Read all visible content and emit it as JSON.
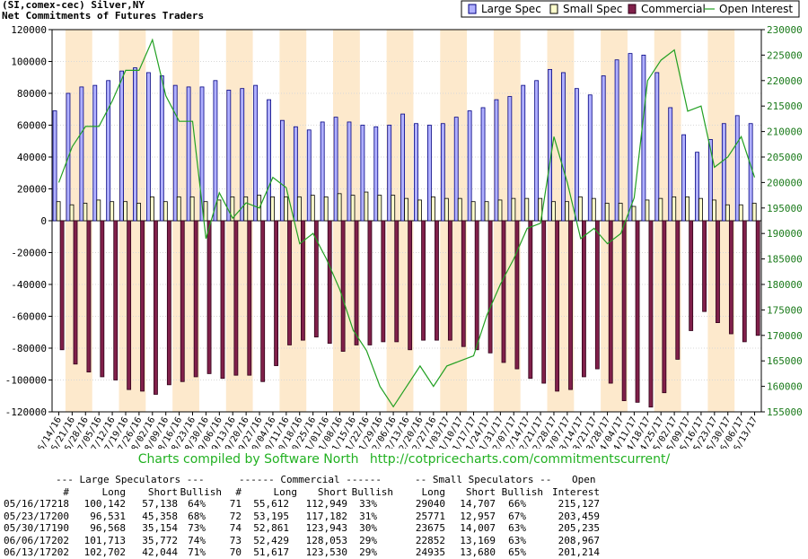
{
  "title_line1": "(SI,comex-cec) Silver,NY",
  "title_line2": "Net Commitments of Futures Traders",
  "colors": {
    "large_spec": "#b0b0ff",
    "small_spec": "#ffffcc",
    "commercial": "#80204a",
    "open_interest": "#22a022",
    "band": "#fde9cc"
  },
  "chart_data": {
    "type": "bar",
    "title": "Net Commitments of Futures Traders",
    "legend_position": "top-right",
    "left_axis": {
      "range": [
        -120000,
        120000
      ],
      "ticks": [
        "120000",
        "100000",
        "80000",
        "60000",
        "40000",
        "20000",
        "0",
        "-20000",
        "-40000",
        "-60000",
        "-80000",
        "-100000",
        "-120000"
      ]
    },
    "right_axis": {
      "range": [
        155000,
        230000
      ],
      "ticks": [
        "230000",
        "225000",
        "220000",
        "215000",
        "210000",
        "205000",
        "200000",
        "195000",
        "190000",
        "185000",
        "180000",
        "175000",
        "170000",
        "165000",
        "160000",
        "155000"
      ]
    },
    "categories": [
      "06/14/16",
      "06/21/16",
      "06/28/16",
      "07/05/16",
      "07/12/16",
      "07/19/16",
      "07/26/16",
      "08/02/16",
      "08/09/16",
      "08/16/16",
      "08/23/16",
      "08/30/16",
      "09/06/16",
      "09/13/16",
      "09/20/16",
      "09/27/16",
      "10/04/16",
      "10/11/16",
      "10/18/16",
      "10/25/16",
      "11/01/16",
      "11/08/16",
      "11/15/16",
      "11/22/16",
      "11/29/16",
      "12/06/16",
      "12/13/16",
      "12/20/16",
      "12/27/16",
      "01/03/17",
      "01/10/17",
      "01/17/17",
      "01/24/17",
      "01/31/17",
      "02/07/17",
      "02/14/17",
      "02/21/17",
      "02/28/17",
      "03/07/17",
      "03/14/17",
      "03/21/17",
      "03/28/17",
      "04/04/17",
      "04/11/17",
      "04/18/17",
      "04/25/17",
      "05/02/17",
      "05/09/17",
      "05/16/17",
      "05/23/17",
      "05/30/17",
      "06/06/17",
      "06/13/17"
    ],
    "series": [
      {
        "name": "Large Spec",
        "axis": "left",
        "values": [
          69000,
          80000,
          84000,
          85000,
          88000,
          94000,
          96000,
          93000,
          91000,
          85000,
          84000,
          84000,
          88000,
          82000,
          83000,
          85000,
          76000,
          63000,
          59000,
          57000,
          62000,
          65000,
          62000,
          60000,
          59000,
          60000,
          67000,
          61000,
          60000,
          61000,
          65000,
          69000,
          71000,
          76000,
          78000,
          85000,
          88000,
          95000,
          93000,
          83000,
          79000,
          91000,
          101000,
          105000,
          104000,
          93000,
          71000,
          54000,
          43000,
          51000,
          61000,
          66000,
          61000
        ]
      },
      {
        "name": "Small Spec",
        "axis": "left",
        "values": [
          12000,
          10000,
          11000,
          13000,
          12000,
          12000,
          11000,
          15000,
          12000,
          15000,
          15000,
          12000,
          13000,
          15000,
          15000,
          16000,
          15000,
          15000,
          15000,
          16000,
          15000,
          17000,
          16000,
          18000,
          16000,
          16000,
          14000,
          13000,
          15000,
          14000,
          14000,
          12000,
          12000,
          13000,
          14000,
          14000,
          14000,
          12000,
          12000,
          15000,
          14000,
          11000,
          11000,
          9000,
          13000,
          14000,
          15000,
          15000,
          14000,
          13000,
          10000,
          10000,
          11000
        ]
      },
      {
        "name": "Commercial",
        "axis": "left",
        "values": [
          -81000,
          -90000,
          -95000,
          -98000,
          -100000,
          -106000,
          -107000,
          -109000,
          -103000,
          -101000,
          -98000,
          -96000,
          -99000,
          -97000,
          -97000,
          -101000,
          -91000,
          -78000,
          -75000,
          -73000,
          -77000,
          -82000,
          -78000,
          -78000,
          -76000,
          -76000,
          -81000,
          -75000,
          -75000,
          -75000,
          -79000,
          -81000,
          -83000,
          -89000,
          -93000,
          -99000,
          -102000,
          -107000,
          -106000,
          -98000,
          -93000,
          -102000,
          -113000,
          -114000,
          -117000,
          -108000,
          -87000,
          -69000,
          -57000,
          -64000,
          -71000,
          -76000,
          -72000
        ]
      },
      {
        "name": "Open Interest",
        "axis": "right",
        "values": [
          200000,
          207000,
          211000,
          211000,
          216000,
          222000,
          222000,
          228000,
          217000,
          212000,
          212000,
          189000,
          198000,
          193000,
          196000,
          195000,
          201000,
          199000,
          188000,
          190000,
          185000,
          179000,
          171000,
          167000,
          160000,
          156000,
          160000,
          164000,
          160000,
          164000,
          165000,
          166000,
          174000,
          180000,
          185000,
          191000,
          192000,
          209000,
          200000,
          189000,
          191000,
          188000,
          190000,
          197000,
          220000,
          224000,
          226000,
          214000,
          215000,
          203000,
          205000,
          209000,
          201000
        ]
      }
    ]
  },
  "credit": {
    "text": "Charts compiled by Software North",
    "url": "http://cotpricecharts.com/commitmentscurrent/"
  },
  "table": {
    "header1": [
      "--- Large Speculators ---",
      "------ Commercial ------",
      "-- Small Speculators --",
      "Open"
    ],
    "header2": [
      "#",
      "Long",
      "Short",
      "Bullish",
      "#",
      "Long",
      "Short",
      "Bullish",
      "Long",
      "Short",
      "Bullish",
      "Interest"
    ],
    "rows": [
      [
        "05/16/17",
        "218",
        "100,142",
        "57,138",
        "64%",
        "71",
        "55,612",
        "112,949",
        "33%",
        "29040",
        "14,707",
        "66%",
        "215,127"
      ],
      [
        "05/23/17",
        "200",
        "96,531",
        "45,358",
        "68%",
        "72",
        "53,195",
        "117,182",
        "31%",
        "25771",
        "12,957",
        "67%",
        "203,459"
      ],
      [
        "05/30/17",
        "190",
        "96,568",
        "35,154",
        "73%",
        "74",
        "52,861",
        "123,943",
        "30%",
        "23675",
        "14,007",
        "63%",
        "205,235"
      ],
      [
        "06/06/17",
        "202",
        "101,713",
        "35,772",
        "74%",
        "73",
        "52,429",
        "128,053",
        "29%",
        "22852",
        "13,169",
        "63%",
        "208,967"
      ],
      [
        "06/13/17",
        "202",
        "102,702",
        "42,044",
        "71%",
        "70",
        "51,617",
        "123,530",
        "29%",
        "24935",
        "13,680",
        "65%",
        "201,214"
      ]
    ]
  }
}
